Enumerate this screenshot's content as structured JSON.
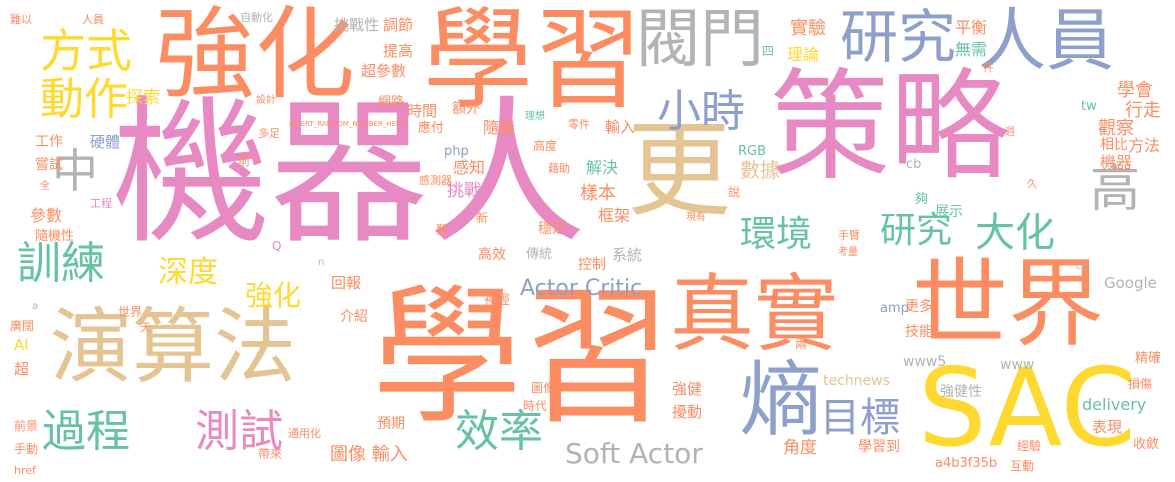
{
  "palette": [
    "#fc8d62",
    "#e78ac3",
    "#8da0cb",
    "#66c2a5",
    "#ffd92f",
    "#e5c494",
    "#a6d854",
    "#b3b3b3"
  ],
  "words": [
    {
      "text": "機器人",
      "color": "#e78ac3"
    },
    {
      "text": "學習",
      "color": "#fc8d62"
    },
    {
      "text": "策略",
      "color": "#e78ac3"
    },
    {
      "text": "學習",
      "color": "#fc8d62"
    },
    {
      "text": "強化",
      "color": "#fc8d62"
    },
    {
      "text": "真實",
      "color": "#fc8d62"
    },
    {
      "text": "世界",
      "color": "#fc8d62"
    },
    {
      "text": "演算法",
      "color": "#e5c494"
    },
    {
      "text": "更",
      "color": "#e5c494"
    },
    {
      "text": "SAC",
      "color": "#ffd92f"
    },
    {
      "text": "研究",
      "color": "#8da0cb"
    },
    {
      "text": "人員",
      "color": "#8da0cb"
    },
    {
      "text": "閥門",
      "color": "#b3b3b3"
    },
    {
      "text": "熵",
      "color": "#8da0cb"
    },
    {
      "text": "方式",
      "color": "#ffd92f"
    },
    {
      "text": "動作",
      "color": "#ffd92f"
    },
    {
      "text": "中",
      "color": "#b3b3b3"
    },
    {
      "text": "小時",
      "color": "#8da0cb"
    },
    {
      "text": "高",
      "color": "#b3b3b3"
    },
    {
      "text": "訓練",
      "color": "#66c2a5"
    },
    {
      "text": "過程",
      "color": "#66c2a5"
    },
    {
      "text": "測試",
      "color": "#e78ac3"
    },
    {
      "text": "效率",
      "color": "#66c2a5"
    },
    {
      "text": "目標",
      "color": "#8da0cb"
    },
    {
      "text": "環境",
      "color": "#66c2a5"
    },
    {
      "text": "研究",
      "color": "#66c2a5"
    },
    {
      "text": "大化",
      "color": "#66c2a5"
    },
    {
      "text": "深度",
      "color": "#ffd92f"
    },
    {
      "text": "強化",
      "color": "#ffd92f"
    },
    {
      "text": "Soft Actor",
      "color": "#b3b3b3"
    },
    {
      "text": "Actor Critic",
      "color": "#8da0cb"
    },
    {
      "text": "實驗",
      "color": "#fc8d62"
    },
    {
      "text": "平衡",
      "color": "#fc8d62"
    },
    {
      "text": "理論",
      "color": "#ffd92f"
    },
    {
      "text": "無需",
      "color": "#66c2a5"
    },
    {
      "text": "學會",
      "color": "#fc8d62"
    },
    {
      "text": "行走",
      "color": "#fc8d62"
    },
    {
      "text": "觀察",
      "color": "#fc8d62"
    },
    {
      "text": "機器",
      "color": "#fc8d62"
    },
    {
      "text": "方法",
      "color": "#fc8d62"
    },
    {
      "text": "相比",
      "color": "#fc8d62"
    },
    {
      "text": "挑戰性",
      "color": "#b3b3b3"
    },
    {
      "text": "調節",
      "color": "#fc8d62"
    },
    {
      "text": "提高",
      "color": "#fc8d62"
    },
    {
      "text": "超參數",
      "color": "#fc8d62"
    },
    {
      "text": "網路",
      "color": "#fc8d62"
    },
    {
      "text": "時間",
      "color": "#fc8d62"
    },
    {
      "text": "額外",
      "color": "#fc8d62"
    },
    {
      "text": "探索",
      "color": "#ffd92f"
    },
    {
      "text": "硬體",
      "color": "#8da0cb"
    },
    {
      "text": "工作",
      "color": "#fc8d62"
    },
    {
      "text": "嘗試",
      "color": "#fc8d62"
    },
    {
      "text": "參數",
      "color": "#fc8d62"
    },
    {
      "text": "隨機性",
      "color": "#fc8d62"
    },
    {
      "text": "工程",
      "color": "#e78ac3"
    },
    {
      "text": "感知",
      "color": "#fc8d62"
    },
    {
      "text": "挑戰",
      "color": "#e78ac3"
    },
    {
      "text": "隨機",
      "color": "#fc8d62"
    },
    {
      "text": "應付",
      "color": "#fc8d62"
    },
    {
      "text": "輸入",
      "color": "#fc8d62"
    },
    {
      "text": "解決",
      "color": "#66c2a5"
    },
    {
      "text": "樣本",
      "color": "#fc8d62"
    },
    {
      "text": "數據",
      "color": "#e5c494"
    },
    {
      "text": "框架",
      "color": "#fc8d62"
    },
    {
      "text": "系統",
      "color": "#b3b3b3"
    },
    {
      "text": "控制",
      "color": "#fc8d62"
    },
    {
      "text": "高效",
      "color": "#fc8d62"
    },
    {
      "text": "穩定",
      "color": "#fc8d62"
    },
    {
      "text": "傳統",
      "color": "#b3b3b3"
    },
    {
      "text": "回報",
      "color": "#fc8d62"
    },
    {
      "text": "介紹",
      "color": "#fc8d62"
    },
    {
      "text": "神經",
      "color": "#fc8d62"
    },
    {
      "text": "圖像 輸入",
      "color": "#fc8d62"
    },
    {
      "text": "預期",
      "color": "#fc8d62"
    },
    {
      "text": "時代",
      "color": "#fc8d62"
    },
    {
      "text": "強健",
      "color": "#fc8d62"
    },
    {
      "text": "擾動",
      "color": "#fc8d62"
    },
    {
      "text": "角度",
      "color": "#fc8d62"
    },
    {
      "text": "學習到",
      "color": "#fc8d62"
    },
    {
      "text": "技能",
      "color": "#fc8d62"
    },
    {
      "text": "更多",
      "color": "#fc8d62"
    },
    {
      "text": "強健性",
      "color": "#b3b3b3"
    },
    {
      "text": "展示",
      "color": "#66c2a5"
    },
    {
      "text": "夠",
      "color": "#66c2a5"
    },
    {
      "text": "Google",
      "color": "#b3b3b3"
    },
    {
      "text": "www5",
      "color": "#b3b3b3"
    },
    {
      "text": "www",
      "color": "#b3b3b3"
    },
    {
      "text": "technews",
      "color": "#e5c494"
    },
    {
      "text": "delivery",
      "color": "#66c2a5"
    },
    {
      "text": "表現",
      "color": "#fc8d62"
    },
    {
      "text": "經驗",
      "color": "#fc8d62"
    },
    {
      "text": "a4b3f35b",
      "color": "#fc8d62"
    },
    {
      "text": "互動",
      "color": "#fc8d62"
    },
    {
      "text": "收斂",
      "color": "#fc8d62"
    },
    {
      "text": "精確",
      "color": "#fc8d62"
    },
    {
      "text": "損傷",
      "color": "#fc8d62"
    },
    {
      "text": "php",
      "color": "#8da0cb"
    },
    {
      "text": "RGB",
      "color": "#66c2a5"
    },
    {
      "text": "amp",
      "color": "#8da0cb"
    },
    {
      "text": "cb",
      "color": "#b3b3b3"
    },
    {
      "text": "tw",
      "color": "#66c2a5"
    },
    {
      "text": "AI",
      "color": "#ffd92f"
    },
    {
      "text": "超",
      "color": "#fc8d62"
    },
    {
      "text": "廣闊",
      "color": "#fc8d62"
    },
    {
      "text": "世界",
      "color": "#fc8d62"
    },
    {
      "text": "前景",
      "color": "#fc8d62"
    },
    {
      "text": "手動",
      "color": "#fc8d62"
    },
    {
      "text": "href",
      "color": "#fc8d62"
    },
    {
      "text": "通用化",
      "color": "#fc8d62"
    },
    {
      "text": "帶來",
      "color": "#fc8d62"
    },
    {
      "text": "人員",
      "color": "#fc8d62"
    },
    {
      "text": "自動化",
      "color": "#b3b3b3"
    },
    {
      "text": "難以",
      "color": "#fc8d62"
    },
    {
      "text": "設計",
      "color": "#fc8d62"
    },
    {
      "text": "多足",
      "color": "#fc8d62"
    },
    {
      "text": "前",
      "color": "#fc8d62"
    },
    {
      "text": "INSERT_RANDOM_NUMBER_HERE",
      "color": "#fc8d62"
    },
    {
      "text": "新",
      "color": "#fc8d62"
    },
    {
      "text": "難",
      "color": "#fc8d62"
    },
    {
      "text": "說",
      "color": "#fc8d62"
    },
    {
      "text": "現有",
      "color": "#fc8d62"
    },
    {
      "text": "手臂",
      "color": "#fc8d62"
    },
    {
      "text": "考量",
      "color": "#fc8d62"
    },
    {
      "text": "兩",
      "color": "#fc8d62"
    },
    {
      "text": "零件",
      "color": "#fc8d62"
    },
    {
      "text": "藉助",
      "color": "#fc8d62"
    },
    {
      "text": "高度",
      "color": "#fc8d62"
    },
    {
      "text": "感測器",
      "color": "#fc8d62"
    },
    {
      "text": "圖像",
      "color": "#fc8d62"
    },
    {
      "text": "四",
      "color": "#66c2a5"
    },
    {
      "text": "件",
      "color": "#fc8d62"
    },
    {
      "text": "週",
      "color": "#fc8d62"
    },
    {
      "text": "久",
      "color": "#fc8d62"
    },
    {
      "text": "全",
      "color": "#fc8d62"
    },
    {
      "text": "天",
      "color": "#fc8d62"
    },
    {
      "text": "Q",
      "color": "#e78ac3"
    },
    {
      "text": "n",
      "color": "#b3b3b3"
    },
    {
      "text": "a",
      "color": "#b3b3b3"
    },
    {
      "text": "ck",
      "color": "#b3b3b3"
    },
    {
      "text": "理想",
      "color": "#66c2a5"
    }
  ]
}
